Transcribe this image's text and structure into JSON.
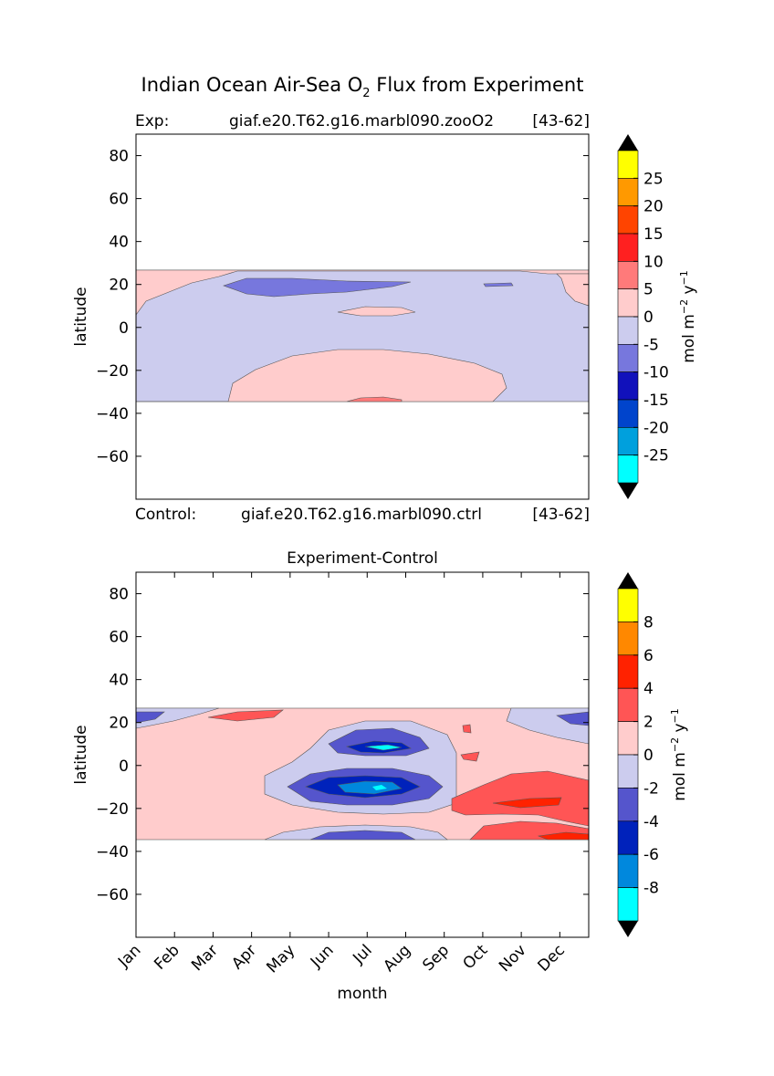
{
  "title_main": "Indian Ocean Air-Sea O",
  "title_sub": "2",
  "title_rest": " Flux from Experiment",
  "panel_top": {
    "header_left": "Exp:",
    "header_mid": "giaf.e20.T62.g16.marbl090.zooO2",
    "header_right": "[43-62]",
    "footer_left": "Control:",
    "footer_mid": "giaf.e20.T62.g16.marbl090.ctrl",
    "footer_right": "[43-62]",
    "ylabel": "latitude"
  },
  "panel_bottom": {
    "title": "Experiment-Control",
    "ylabel": "latitude",
    "xlabel": "month"
  },
  "colorbar_top": {
    "unit_a": "mol m",
    "unit_exp1": "−2",
    "unit_b": " y",
    "unit_exp2": "−1",
    "ticks": [
      "25",
      "20",
      "15",
      "10",
      "5",
      "0",
      "-5",
      "-10",
      "-15",
      "-20",
      "-25"
    ],
    "colors": [
      "#ffff00",
      "#ff9900",
      "#ff4400",
      "#ff2020",
      "#ff7a7a",
      "#ffcccc",
      "#ccccee",
      "#7777dd",
      "#1111bb",
      "#0044cc",
      "#00a0dd",
      "#00ffff"
    ]
  },
  "colorbar_bottom": {
    "unit_a": "mol m",
    "unit_exp1": "−2",
    "unit_b": " y",
    "unit_exp2": "−1",
    "ticks": [
      "8",
      "6",
      "4",
      "2",
      "0",
      "-2",
      "-4",
      "-6",
      "-8"
    ],
    "colors": [
      "#ffff00",
      "#ff8800",
      "#ff2200",
      "#ff5555",
      "#ffcccc",
      "#ccccee",
      "#5555cc",
      "#0022bb",
      "#0088dd",
      "#00ffff"
    ]
  },
  "chart_data": [
    {
      "type": "heatmap",
      "title": "Indian Ocean Air-Sea O2 Flux from Experiment",
      "xlabel": "",
      "ylabel": "latitude",
      "ylim": [
        -80,
        90
      ],
      "yticks": [
        80,
        60,
        40,
        20,
        0,
        -20,
        -40,
        -60
      ],
      "data_lat_range": [
        -34,
        27
      ],
      "color_levels": [
        -25,
        -20,
        -15,
        -10,
        -5,
        0,
        5,
        10,
        15,
        20,
        25
      ],
      "background_color": "#ccccee",
      "regions": [
        {
          "name": "northern-edge-positive",
          "level": "0 to 5",
          "color": "#ffcccc"
        },
        {
          "name": "southern-subtropical-positive",
          "level": "0 to 5",
          "color": "#ffcccc"
        },
        {
          "name": "arabian-sea-negative",
          "level": "-10 to -5",
          "color": "#7777dd"
        },
        {
          "name": "southern-edge-positive",
          "level": "5 to 10",
          "color": "#ff7a7a"
        }
      ]
    },
    {
      "type": "heatmap",
      "title": "Experiment-Control",
      "xlabel": "month",
      "ylabel": "latitude",
      "categories": [
        "Jan",
        "Feb",
        "Mar",
        "Apr",
        "May",
        "Jun",
        "Jul",
        "Aug",
        "Sep",
        "Oct",
        "Nov",
        "Dec"
      ],
      "ylim": [
        -80,
        90
      ],
      "yticks": [
        80,
        60,
        40,
        20,
        0,
        -20,
        -40,
        -60
      ],
      "data_lat_range": [
        -34,
        27
      ],
      "color_levels": [
        -8,
        -6,
        -4,
        -2,
        0,
        2,
        4,
        6,
        8
      ],
      "background_color": "#ffcccc",
      "regions": [
        {
          "name": "tropical-negative-band",
          "level": "-2 to 0",
          "color": "#ccccee"
        },
        {
          "name": "equatorial-minimum",
          "level": "-8 to -6",
          "color": "#0088dd"
        },
        {
          "name": "southern-positive-late-year",
          "level": "2 to 4",
          "color": "#ff5555"
        },
        {
          "name": "southern-edge-negative",
          "level": "-4 to -2",
          "color": "#5555cc"
        }
      ]
    }
  ]
}
